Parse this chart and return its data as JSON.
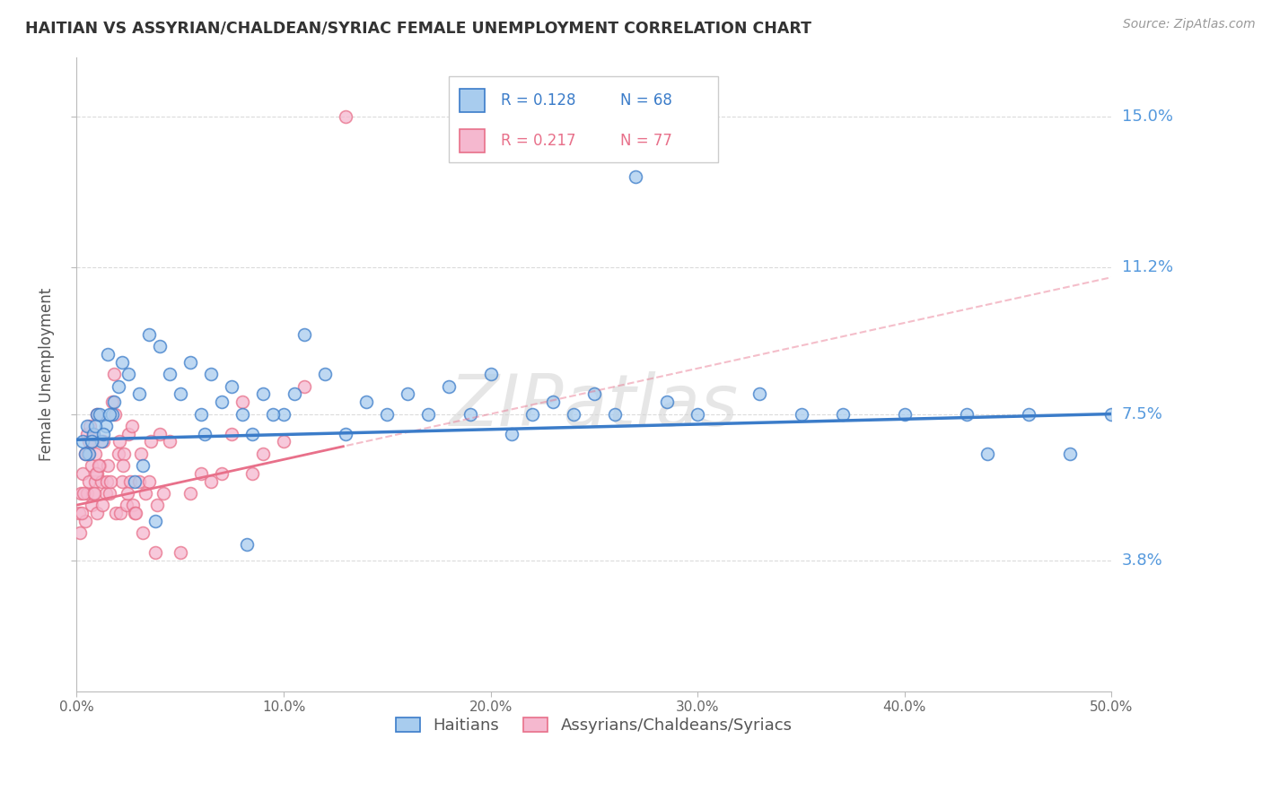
{
  "title": "HAITIAN VS ASSYRIAN/CHALDEAN/SYRIAC FEMALE UNEMPLOYMENT CORRELATION CHART",
  "source": "Source: ZipAtlas.com",
  "ylabel": "Female Unemployment",
  "xmin": 0.0,
  "xmax": 50.0,
  "ymin": 0.5,
  "ymax": 16.5,
  "yticks": [
    3.8,
    7.5,
    11.2,
    15.0
  ],
  "xticks": [
    0.0,
    10.0,
    20.0,
    30.0,
    40.0,
    50.0
  ],
  "label1": "Haitians",
  "label2": "Assyrians/Chaldeans/Syriacs",
  "color1": "#A8CCEE",
  "color2": "#F5B8CF",
  "trend_color1": "#3B7CC9",
  "trend_color2": "#E8708A",
  "watermark": "ZIPatlas",
  "background_color": "#FFFFFF",
  "title_color": "#333333",
  "axis_label_color": "#5599DD",
  "grid_color": "#CCCCCC",
  "haitians_x": [
    0.3,
    0.5,
    0.6,
    0.8,
    1.0,
    1.2,
    1.4,
    1.5,
    1.7,
    1.8,
    2.0,
    2.2,
    2.5,
    3.0,
    3.5,
    4.0,
    4.5,
    5.0,
    5.5,
    6.0,
    6.5,
    7.0,
    7.5,
    8.0,
    8.5,
    9.0,
    10.0,
    11.0,
    12.0,
    13.0,
    14.0,
    15.0,
    16.0,
    17.0,
    18.0,
    19.0,
    20.0,
    21.0,
    22.0,
    23.0,
    24.0,
    25.0,
    26.0,
    27.0,
    28.5,
    30.0,
    33.0,
    35.0,
    37.0,
    40.0,
    43.0,
    46.0,
    48.0,
    50.0,
    0.4,
    0.7,
    0.9,
    1.1,
    1.3,
    1.6,
    2.8,
    3.2,
    3.8,
    6.2,
    8.2,
    9.5,
    10.5,
    44.0
  ],
  "haitians_y": [
    6.8,
    7.2,
    6.5,
    7.0,
    7.5,
    6.8,
    7.2,
    9.0,
    7.5,
    7.8,
    8.2,
    8.8,
    8.5,
    8.0,
    9.5,
    9.2,
    8.5,
    8.0,
    8.8,
    7.5,
    8.5,
    7.8,
    8.2,
    7.5,
    7.0,
    8.0,
    7.5,
    9.5,
    8.5,
    7.0,
    7.8,
    7.5,
    8.0,
    7.5,
    8.2,
    7.5,
    8.5,
    7.0,
    7.5,
    7.8,
    7.5,
    8.0,
    7.5,
    13.5,
    7.8,
    7.5,
    8.0,
    7.5,
    7.5,
    7.5,
    7.5,
    7.5,
    6.5,
    7.5,
    6.5,
    6.8,
    7.2,
    7.5,
    7.0,
    7.5,
    5.8,
    6.2,
    4.8,
    7.0,
    4.2,
    7.5,
    8.0,
    6.5
  ],
  "assyrians_x": [
    0.1,
    0.2,
    0.3,
    0.4,
    0.4,
    0.5,
    0.5,
    0.6,
    0.6,
    0.7,
    0.7,
    0.8,
    0.8,
    0.9,
    0.9,
    1.0,
    1.0,
    1.0,
    1.1,
    1.2,
    1.3,
    1.4,
    1.5,
    1.6,
    1.7,
    1.8,
    1.9,
    2.0,
    2.1,
    2.2,
    2.3,
    2.4,
    2.5,
    2.6,
    2.7,
    2.8,
    3.0,
    3.2,
    3.5,
    3.8,
    4.0,
    4.5,
    5.0,
    5.5,
    6.0,
    6.5,
    7.0,
    7.5,
    8.0,
    8.5,
    9.0,
    10.0,
    11.0,
    0.15,
    0.25,
    0.35,
    0.55,
    0.65,
    0.75,
    0.85,
    0.95,
    1.05,
    1.25,
    1.45,
    1.65,
    1.85,
    2.05,
    2.25,
    2.45,
    2.65,
    2.85,
    3.1,
    3.3,
    3.6,
    3.9,
    4.2,
    13.0
  ],
  "assyrians_y": [
    5.0,
    5.5,
    6.0,
    4.8,
    6.5,
    5.5,
    7.0,
    5.8,
    6.8,
    5.2,
    6.2,
    5.5,
    7.0,
    5.8,
    6.5,
    5.0,
    6.0,
    7.5,
    6.2,
    5.8,
    6.8,
    5.5,
    6.2,
    5.5,
    7.8,
    8.5,
    5.0,
    6.5,
    5.0,
    5.8,
    6.5,
    5.2,
    7.0,
    5.8,
    5.2,
    5.0,
    5.8,
    4.5,
    5.8,
    4.0,
    7.0,
    6.8,
    4.0,
    5.5,
    6.0,
    5.8,
    6.0,
    7.0,
    7.8,
    6.0,
    6.5,
    6.8,
    8.2,
    4.5,
    5.0,
    5.5,
    6.5,
    7.2,
    6.8,
    5.5,
    6.0,
    6.2,
    5.2,
    5.8,
    5.8,
    7.5,
    6.8,
    6.2,
    5.5,
    7.2,
    5.0,
    6.5,
    5.5,
    6.8,
    5.2,
    5.5,
    15.0
  ]
}
